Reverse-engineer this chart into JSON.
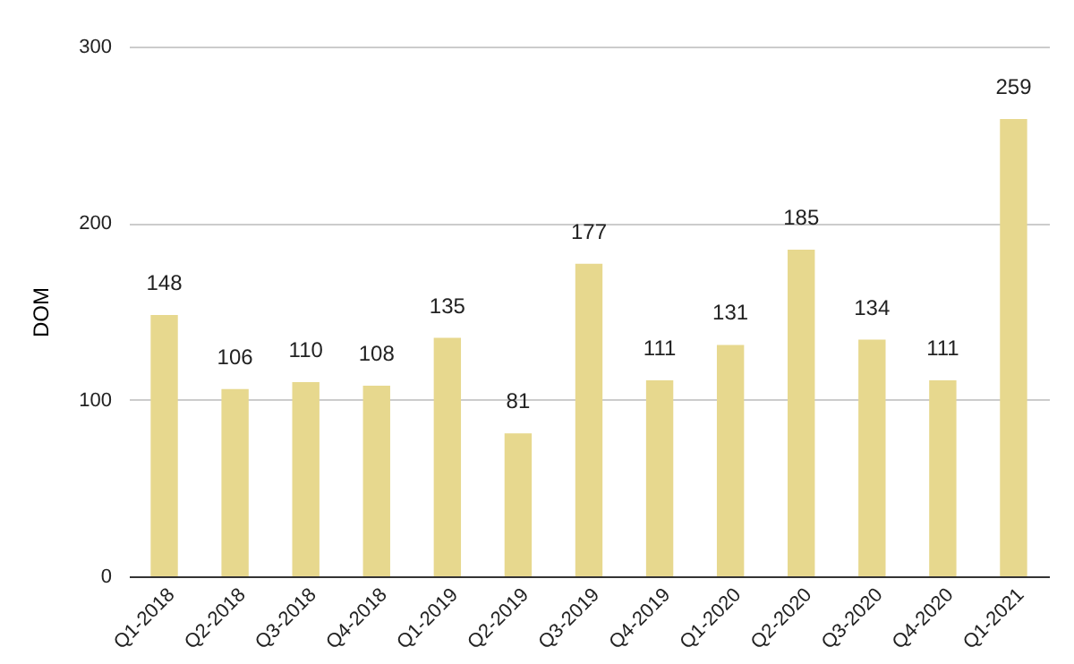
{
  "chart_data": {
    "type": "bar",
    "ylabel": "DOM",
    "categories": [
      "Q1-2018",
      "Q2-2018",
      "Q3-2018",
      "Q4-2018",
      "Q1-2019",
      "Q2-2019",
      "Q3-2019",
      "Q4-2019",
      "Q1-2020",
      "Q2-2020",
      "Q3-2020",
      "Q4-2020",
      "Q1-2021"
    ],
    "values": [
      148,
      106,
      110,
      108,
      135,
      81,
      177,
      111,
      131,
      185,
      134,
      111,
      259
    ],
    "color": "#e7d88e",
    "ylim": [
      0,
      300
    ],
    "yticks": [
      0,
      100,
      200,
      300
    ],
    "grid": "y",
    "data_labels": true
  }
}
